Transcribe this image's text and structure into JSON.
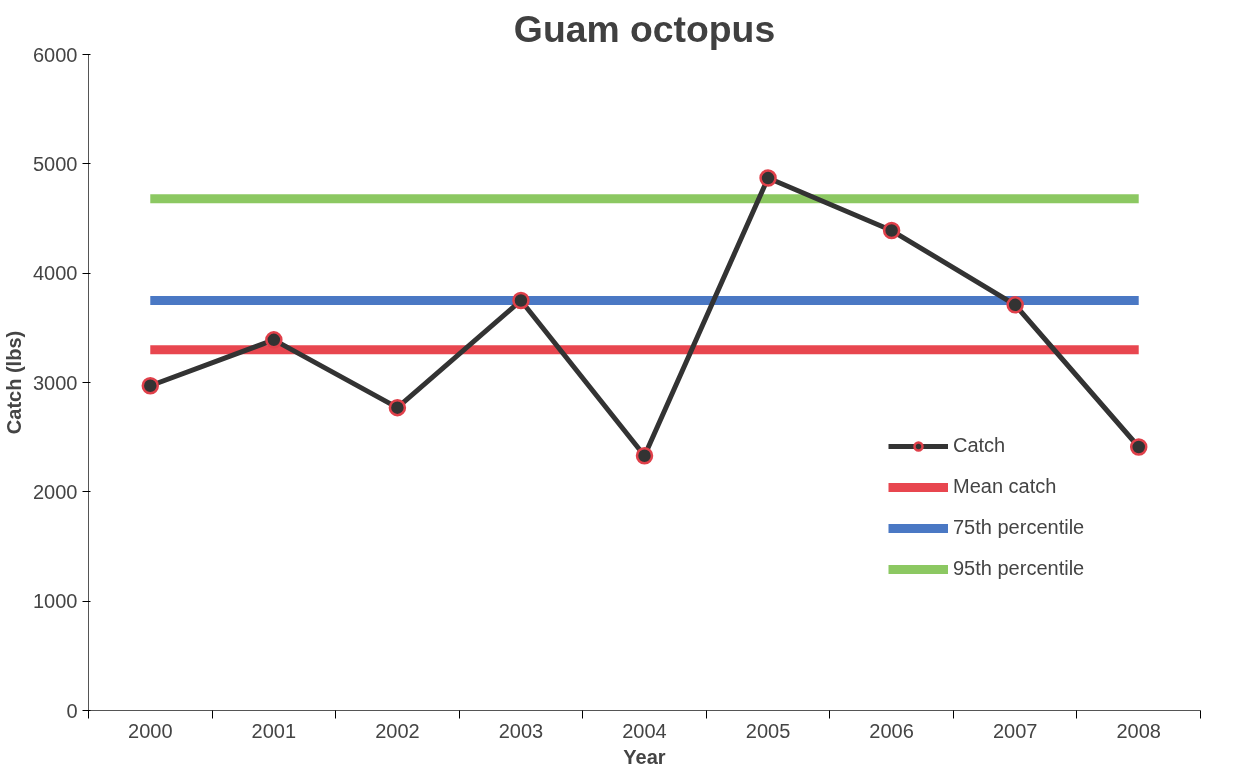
{
  "chart_data": {
    "type": "line",
    "title": "Guam octopus",
    "xlabel": "Year",
    "ylabel": "Catch (lbs)",
    "categories": [
      "2000",
      "2001",
      "2002",
      "2003",
      "2004",
      "2005",
      "2006",
      "2007",
      "2008"
    ],
    "series": [
      {
        "name": "Catch",
        "color": "#333333",
        "marker": "circle",
        "values": [
          2970,
          3390,
          2770,
          3750,
          2330,
          4870,
          4390,
          3710,
          2410
        ]
      },
      {
        "name": "Mean catch",
        "color": "#e8464f",
        "marker": "none",
        "values": [
          3300,
          3300,
          3300,
          3300,
          3300,
          3300,
          3300,
          3300,
          3300
        ]
      },
      {
        "name": "75th percentile",
        "color": "#4a78c4",
        "marker": "none",
        "values": [
          3750,
          3750,
          3750,
          3750,
          3750,
          3750,
          3750,
          3750,
          3750
        ]
      },
      {
        "name": "95th percentile",
        "color": "#8cc862",
        "marker": "none",
        "values": [
          4680,
          4680,
          4680,
          4680,
          4680,
          4680,
          4680,
          4680,
          4680
        ]
      }
    ],
    "ylim": [
      0,
      6000
    ],
    "yticks": [
      0,
      1000,
      2000,
      3000,
      4000,
      5000,
      6000
    ],
    "grid": false,
    "legend": "right"
  }
}
